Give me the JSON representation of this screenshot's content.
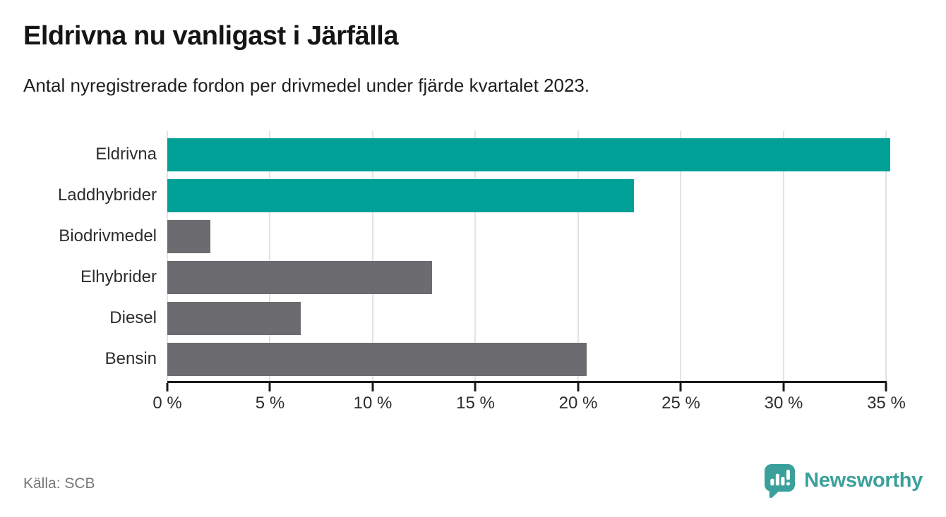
{
  "header": {
    "title": "Eldrivna nu vanligast i Järfälla",
    "subtitle": "Antal nyregistrerade fordon per drivmedel under fjärde kvartalet 2023."
  },
  "footer": {
    "source": "Källa: SCB",
    "brand": "Newsworthy"
  },
  "colors": {
    "teal": "#00a096",
    "gray": "#6c6c70",
    "brand": "#3ba09b",
    "gridline": "#e3e3e3",
    "axis": "#1a1a1a"
  },
  "chart_data": {
    "type": "bar",
    "orientation": "horizontal",
    "title": "Eldrivna nu vanligast i Järfälla",
    "subtitle": "Antal nyregistrerade fordon per drivmedel under fjärde kvartalet 2023.",
    "categories": [
      "Eldrivna",
      "Laddhybrider",
      "Biodrivmedel",
      "Elhybrider",
      "Diesel",
      "Bensin"
    ],
    "values": [
      35.2,
      22.7,
      2.1,
      12.9,
      6.5,
      20.4
    ],
    "unit": "%",
    "bar_colors": [
      "teal",
      "teal",
      "gray",
      "gray",
      "gray",
      "gray"
    ],
    "x_ticks": [
      0,
      5,
      10,
      15,
      20,
      25,
      30,
      35
    ],
    "x_tick_labels": [
      "0 %",
      "5 %",
      "10 %",
      "15 %",
      "20 %",
      "25 %",
      "30 %",
      "35 %"
    ],
    "xlim": [
      0,
      35.5
    ],
    "grid": "vertical",
    "legend": "none",
    "source": "Källa: SCB"
  }
}
